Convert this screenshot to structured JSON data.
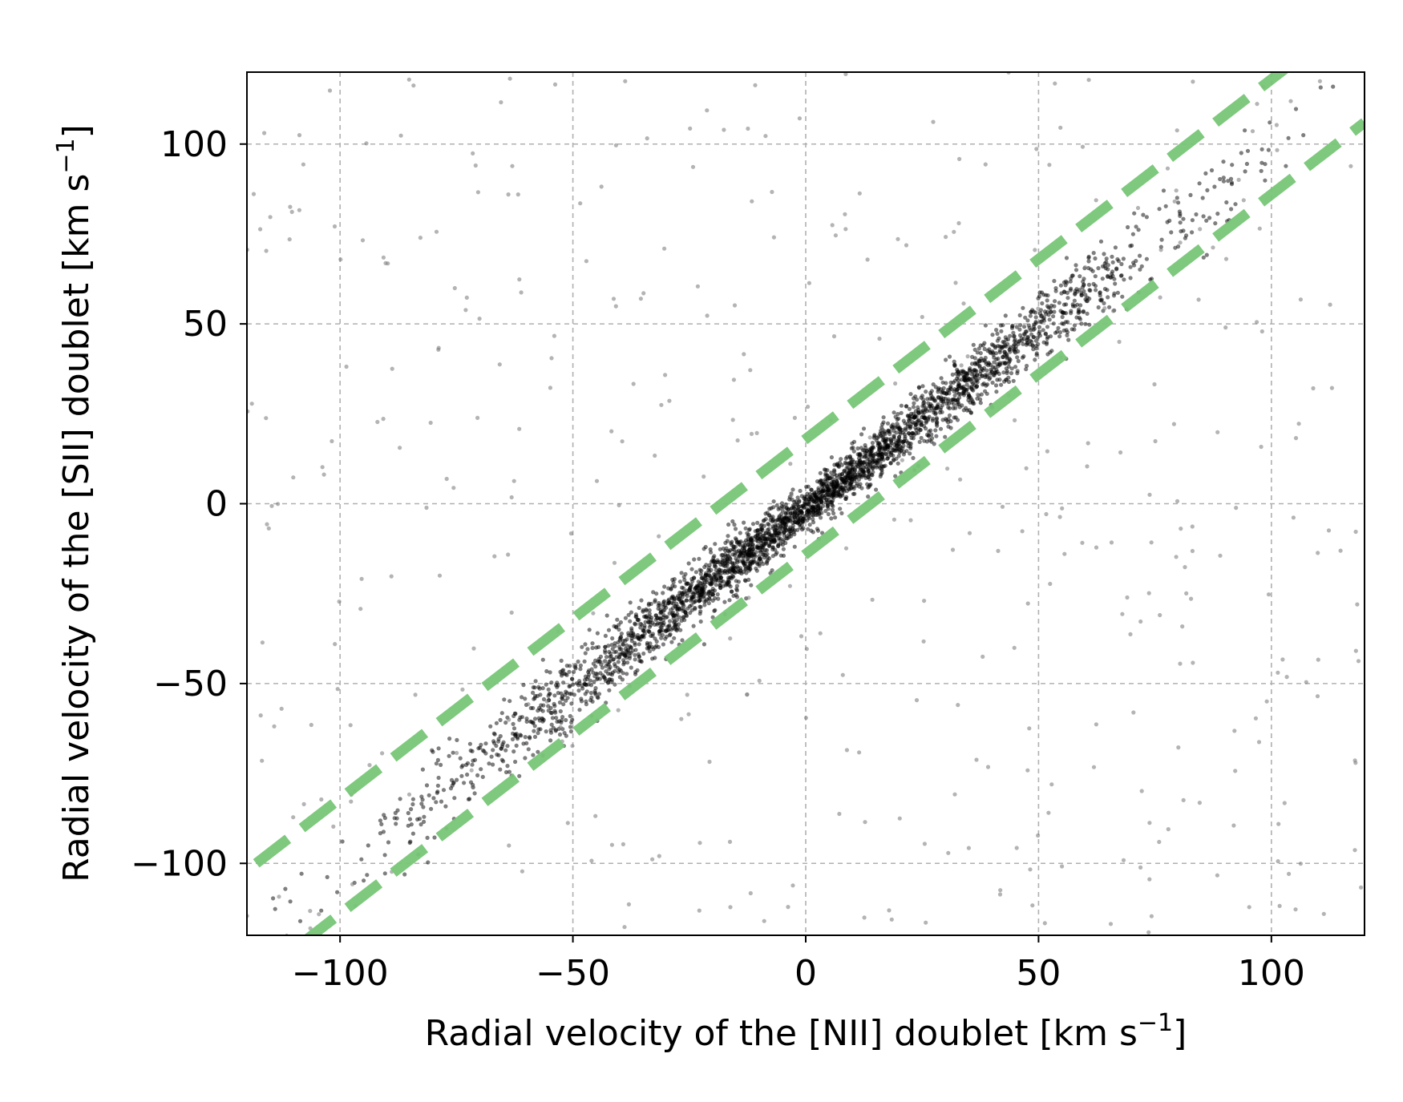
{
  "chart_data": {
    "type": "scatter",
    "title": "",
    "xlabel": {
      "main": "Radial velocity of the [NII] doublet [km s",
      "sup": "−1",
      "close": "]"
    },
    "ylabel": {
      "main": "Radial velocity of the [SII] doublet [km s",
      "sup": "−1",
      "close": "]"
    },
    "xlim": [
      -120,
      120
    ],
    "ylim": [
      -120,
      120
    ],
    "x_ticks": [
      -100,
      -50,
      0,
      50,
      100
    ],
    "y_ticks": [
      -100,
      -50,
      0,
      50,
      100
    ],
    "x_tick_labels": [
      "−100",
      "−50",
      "0",
      "50",
      "100"
    ],
    "y_tick_labels": [
      "−100",
      "−50",
      "0",
      "50",
      "100"
    ],
    "grid": true,
    "grid_style": "dashed",
    "grid_color": "#b0b0b0",
    "point_color": "#000000",
    "point_opacity": 0.5,
    "scatter_description": {
      "relation": "y ≈ x",
      "core_points": 3200,
      "core_scatter_sd": 4.0,
      "core_x_range": [
        -120,
        120
      ],
      "outlier_points": 420,
      "outlier_range": [
        -120,
        120
      ]
    },
    "reference_lines": [
      {
        "name": "upper bound",
        "slope": 1,
        "intercept": 18,
        "color": "#77c677",
        "style": "dashed"
      },
      {
        "name": "lower bound",
        "slope": 1,
        "intercept": -14,
        "color": "#77c677",
        "style": "dashed"
      }
    ]
  }
}
